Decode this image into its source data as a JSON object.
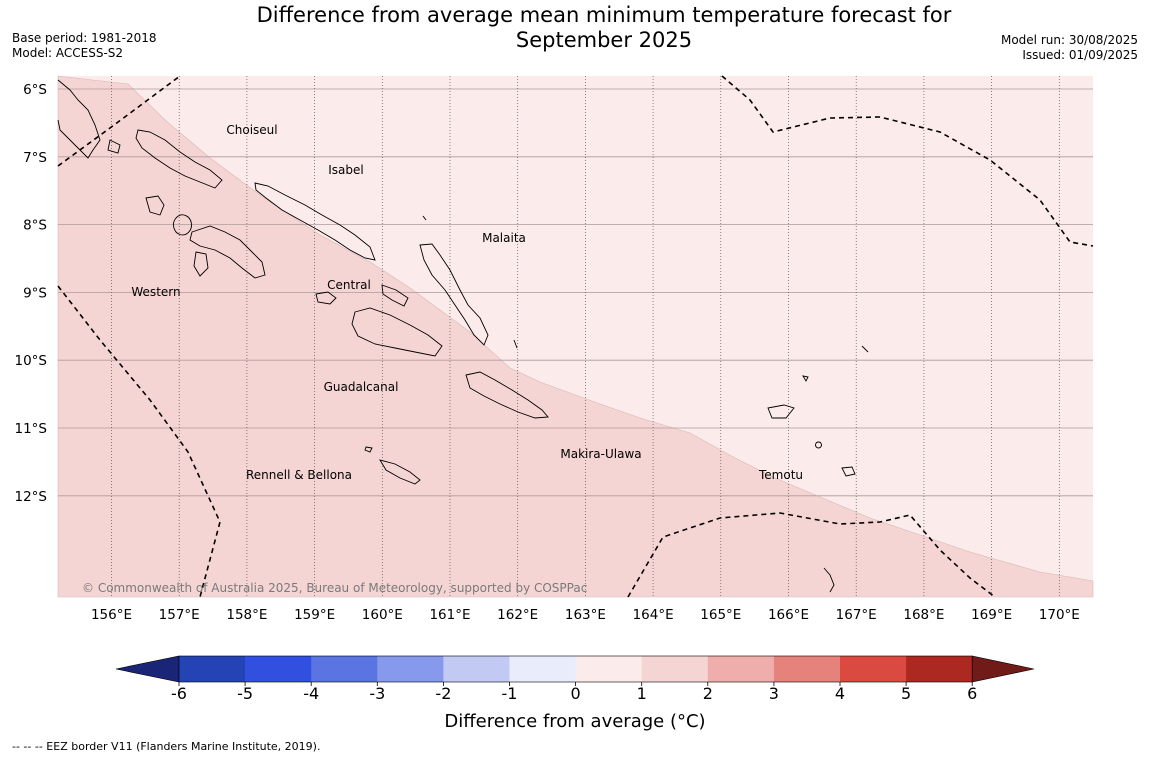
{
  "title_line1": "Difference from average mean minimum temperature forecast for",
  "title_line2": "September 2025",
  "base_period": "Base period: 1981-2018",
  "model": "Model: ACCESS-S2",
  "model_run": "Model run: 30/08/2025",
  "issued": "Issued: 01/09/2025",
  "copyright": "© Commonwealth of Australia 2025, Bureau of Meteorology, supported by COSPPac",
  "footer": "--  --  -- EEZ border V11 (Flanders Marine Institute, 2019).",
  "lon_ticks": [
    "156°E",
    "157°E",
    "158°E",
    "159°E",
    "160°E",
    "161°E",
    "162°E",
    "163°E",
    "164°E",
    "165°E",
    "166°E",
    "167°E",
    "168°E",
    "169°E",
    "170°E"
  ],
  "lat_ticks": [
    "6°S",
    "7°S",
    "8°S",
    "9°S",
    "10°S",
    "11°S",
    "12°S"
  ],
  "province_labels": {
    "choiseul": "Choiseul",
    "isabel": "Isabel",
    "malaita": "Malaita",
    "western": "Western",
    "central": "Central",
    "guadalcanal": "Guadalcanal",
    "makira_ulawa": "Makira-Ulawa",
    "temotu": "Temotu",
    "rennell_bellona": "Rennell & Bellona"
  },
  "colorbar": {
    "title": "Difference from average (°C)",
    "tick_labels": [
      "-6",
      "-5",
      "-4",
      "-3",
      "-2",
      "-1",
      "0",
      "1",
      "2",
      "3",
      "4",
      "5",
      "6"
    ],
    "colors": [
      "#1a2577",
      "#2443b4",
      "#3150e0",
      "#5a74e2",
      "#8799ec",
      "#c2caf4",
      "#e8ecfb",
      "#fbebea",
      "#f5d5d4",
      "#efaeac",
      "#e5827c",
      "#da4a41",
      "#ac2922",
      "#701b18"
    ],
    "extend": "both"
  },
  "legend_colors": {
    "zero_to_one": "#fbebea",
    "one_to_two": "#f5d5d4"
  }
}
